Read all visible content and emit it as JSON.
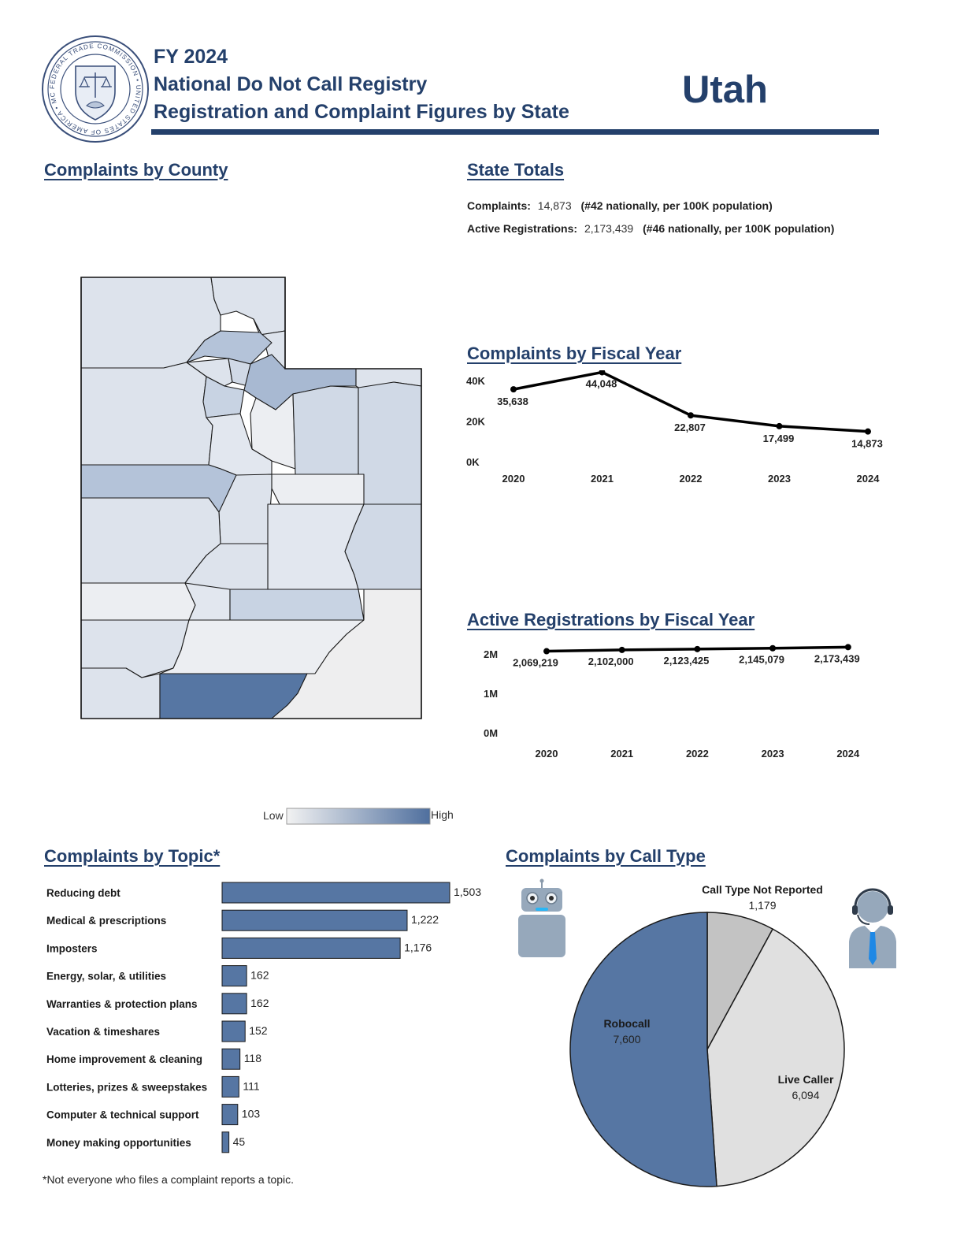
{
  "header": {
    "fiscal_year": "FY 2024",
    "line2": "National Do Not Call Registry",
    "line3": "Registration and Complaint Figures by State",
    "state": "Utah",
    "seal_text": "FEDERAL TRADE COMMISSION • UNITED STATES OF AMERICA • MCMXV",
    "colors": {
      "navy": "#24406b",
      "bar": "#5676a3"
    }
  },
  "sections": {
    "county": "Complaints by County",
    "totals": "State Totals",
    "fiscal_year": "Complaints by Fiscal Year",
    "registrations": "Active Registrations by Fiscal Year",
    "topic": "Complaints by Topic*",
    "call_type": "Complaints by Call Type"
  },
  "state_totals": {
    "complaints_label": "Complaints:",
    "complaints_value": "14,873",
    "complaints_rank": "(#42 nationally, per 100K population)",
    "registrations_label": "Active Registrations:",
    "registrations_value": "2,173,439",
    "registrations_rank": "(#46 nationally, per 100K population)"
  },
  "legend": {
    "low": "Low",
    "high": "High",
    "low_color": "#f2f2f2",
    "high_color": "#4f6f9e"
  },
  "footnote": "*Not everyone who files a complaint reports a topic.",
  "chart_data": [
    {
      "type": "line",
      "title": "Complaints by Fiscal Year",
      "x": [
        "2020",
        "2021",
        "2022",
        "2023",
        "2024"
      ],
      "values": [
        35638,
        44048,
        22807,
        17499,
        14873
      ],
      "labels": [
        "35,638",
        "44,048",
        "22,807",
        "17,499",
        "14,873"
      ],
      "yticks": [
        "40K",
        "20K",
        "0K"
      ],
      "ytick_values": [
        40000,
        20000,
        0
      ],
      "ylim": [
        0,
        45000
      ],
      "grid": false
    },
    {
      "type": "line",
      "title": "Active Registrations by Fiscal Year",
      "x": [
        "2020",
        "2021",
        "2022",
        "2023",
        "2024"
      ],
      "values": [
        2069219,
        2102000,
        2123425,
        2145079,
        2173439
      ],
      "labels": [
        "2,069,219",
        "2,102,000",
        "2,123,425",
        "2,145,079",
        "2,173,439"
      ],
      "yticks": [
        "2M",
        "1M",
        "0M"
      ],
      "ytick_values": [
        2000000,
        1000000,
        0
      ],
      "ylim": [
        0,
        2000000
      ],
      "grid": false
    },
    {
      "type": "bar",
      "orientation": "horizontal",
      "title": "Complaints by Topic*",
      "categories": [
        "Reducing debt",
        "Medical & prescriptions",
        "Imposters",
        "Energy, solar, & utilities",
        "Warranties & protection plans",
        "Vacation & timeshares",
        "Home improvement & cleaning",
        "Lotteries, prizes & sweepstakes",
        "Computer & technical support",
        "Money making opportunities"
      ],
      "values": [
        1503,
        1222,
        1176,
        162,
        162,
        152,
        118,
        111,
        103,
        45
      ],
      "labels": [
        "1,503",
        "1,222",
        "1,176",
        "162",
        "162",
        "152",
        "118",
        "111",
        "103",
        "45"
      ],
      "color": "#5676a3"
    },
    {
      "type": "pie",
      "title": "Complaints by Call Type",
      "slices": [
        {
          "name": "Call Type Not Reported",
          "value": 1179,
          "label": "1,179",
          "color": "#c3c3c3"
        },
        {
          "name": "Live Caller",
          "value": 6094,
          "label": "6,094",
          "color": "#e0e0e0"
        },
        {
          "name": "Robocall",
          "value": 7600,
          "label": "7,600",
          "color": "#5676a3"
        }
      ]
    }
  ]
}
